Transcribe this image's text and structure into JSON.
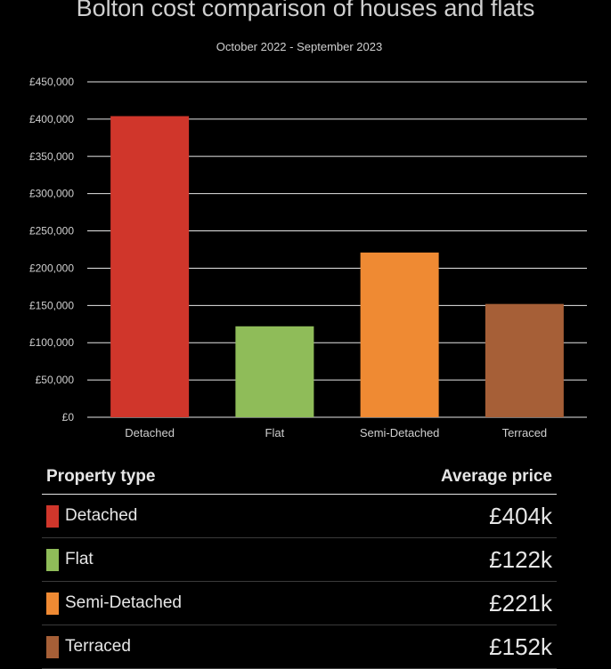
{
  "chart_data": {
    "type": "bar",
    "title": "Bolton cost comparison of houses and flats",
    "subtitle": "October 2022 - September 2023",
    "categories": [
      "Detached",
      "Flat",
      "Semi-Detached",
      "Terraced"
    ],
    "values": [
      404000,
      122000,
      221000,
      152000
    ],
    "colors": [
      "#d0362b",
      "#8fbc59",
      "#ef8a33",
      "#a65f37"
    ],
    "ylim": [
      0,
      450000
    ],
    "yticks": [
      0,
      50000,
      100000,
      150000,
      200000,
      250000,
      300000,
      350000,
      400000,
      450000
    ],
    "ytick_labels": [
      "£0",
      "£50,000",
      "£100,000",
      "£150,000",
      "£200,000",
      "£250,000",
      "£300,000",
      "£350,000",
      "£400,000",
      "£450,000"
    ],
    "xlabel": "",
    "ylabel": "",
    "grid": true
  },
  "table": {
    "header_type": "Property type",
    "header_price": "Average price",
    "rows": [
      {
        "label": "Detached",
        "value": "£404k",
        "color": "#d0362b"
      },
      {
        "label": "Flat",
        "value": "£122k",
        "color": "#8fbc59"
      },
      {
        "label": "Semi-Detached",
        "value": "£221k",
        "color": "#ef8a33"
      },
      {
        "label": "Terraced",
        "value": "£152k",
        "color": "#a65f37"
      }
    ]
  }
}
